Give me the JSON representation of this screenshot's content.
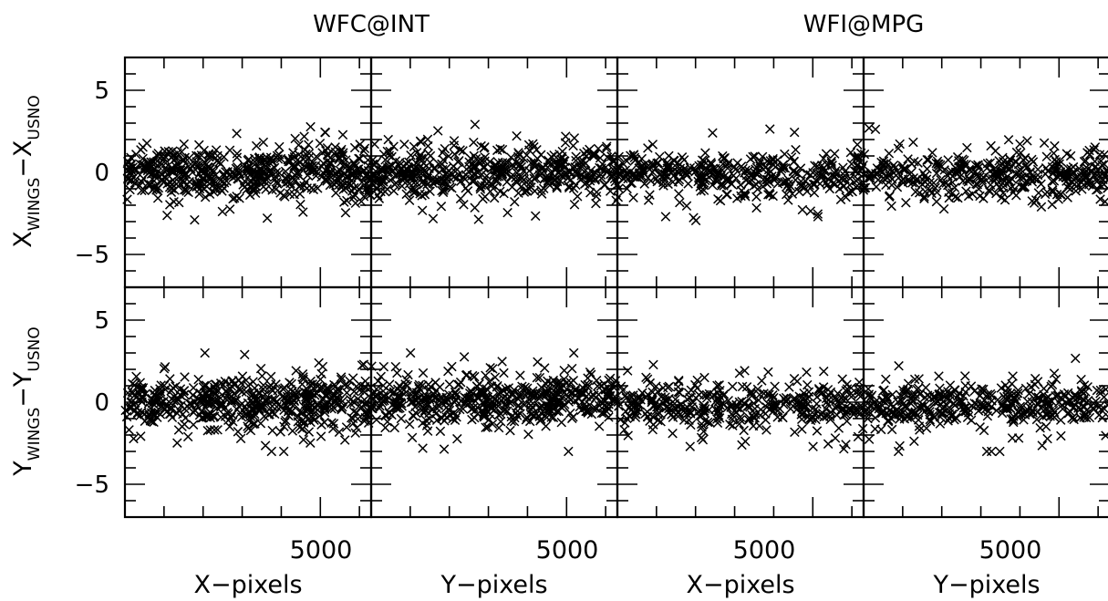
{
  "chart_data": {
    "type": "scatter",
    "group_titles": [
      "WFC@INT",
      "WFI@MPG"
    ],
    "ylabels": [
      {
        "base": "X",
        "sub_a": "WINGS",
        "minus": "−",
        "sub_b": "USNO",
        "base_b": "X"
      },
      {
        "base": "Y",
        "sub_a": "WINGS",
        "minus": "−",
        "sub_b": "USNO",
        "base_b": "Y"
      }
    ],
    "xlabels": [
      "X−pixels",
      "Y−pixels",
      "X−pixels",
      "Y−pixels"
    ],
    "xtick_label": "5000",
    "yticks": [
      {
        "value": 5,
        "label": "5"
      },
      {
        "value": 0,
        "label": "0"
      },
      {
        "value": -5,
        "label": "−5"
      }
    ],
    "ylim": [
      -7,
      7
    ],
    "xlim": [
      0,
      6300
    ],
    "marker": "x",
    "color": "#000000",
    "panels": [
      {
        "row": "X_WINGS−X_USNO",
        "col": "X−pixels",
        "instrument": "WFC@INT",
        "n_points": 520,
        "mean": 0.0,
        "sigma": 0.75
      },
      {
        "row": "X_WINGS−X_USNO",
        "col": "Y−pixels",
        "instrument": "WFC@INT",
        "n_points": 480,
        "mean": 0.0,
        "sigma": 0.75
      },
      {
        "row": "X_WINGS−X_USNO",
        "col": "X−pixels",
        "instrument": "WFI@MPG",
        "n_points": 380,
        "mean": -0.1,
        "sigma": 0.7
      },
      {
        "row": "X_WINGS−X_USNO",
        "col": "Y−pixels",
        "instrument": "WFI@MPG",
        "n_points": 380,
        "mean": -0.2,
        "sigma": 0.7
      },
      {
        "row": "Y_WINGS−Y_USNO",
        "col": "X−pixels",
        "instrument": "WFC@INT",
        "n_points": 520,
        "mean": 0.0,
        "sigma": 0.75
      },
      {
        "row": "Y_WINGS−Y_USNO",
        "col": "Y−pixels",
        "instrument": "WFC@INT",
        "n_points": 480,
        "mean": 0.1,
        "sigma": 0.75
      },
      {
        "row": "Y_WINGS−Y_USNO",
        "col": "X−pixels",
        "instrument": "WFI@MPG",
        "n_points": 380,
        "mean": -0.2,
        "sigma": 0.7
      },
      {
        "row": "Y_WINGS−Y_USNO",
        "col": "Y−pixels",
        "instrument": "WFI@MPG",
        "n_points": 380,
        "mean": -0.2,
        "sigma": 0.7
      }
    ]
  }
}
